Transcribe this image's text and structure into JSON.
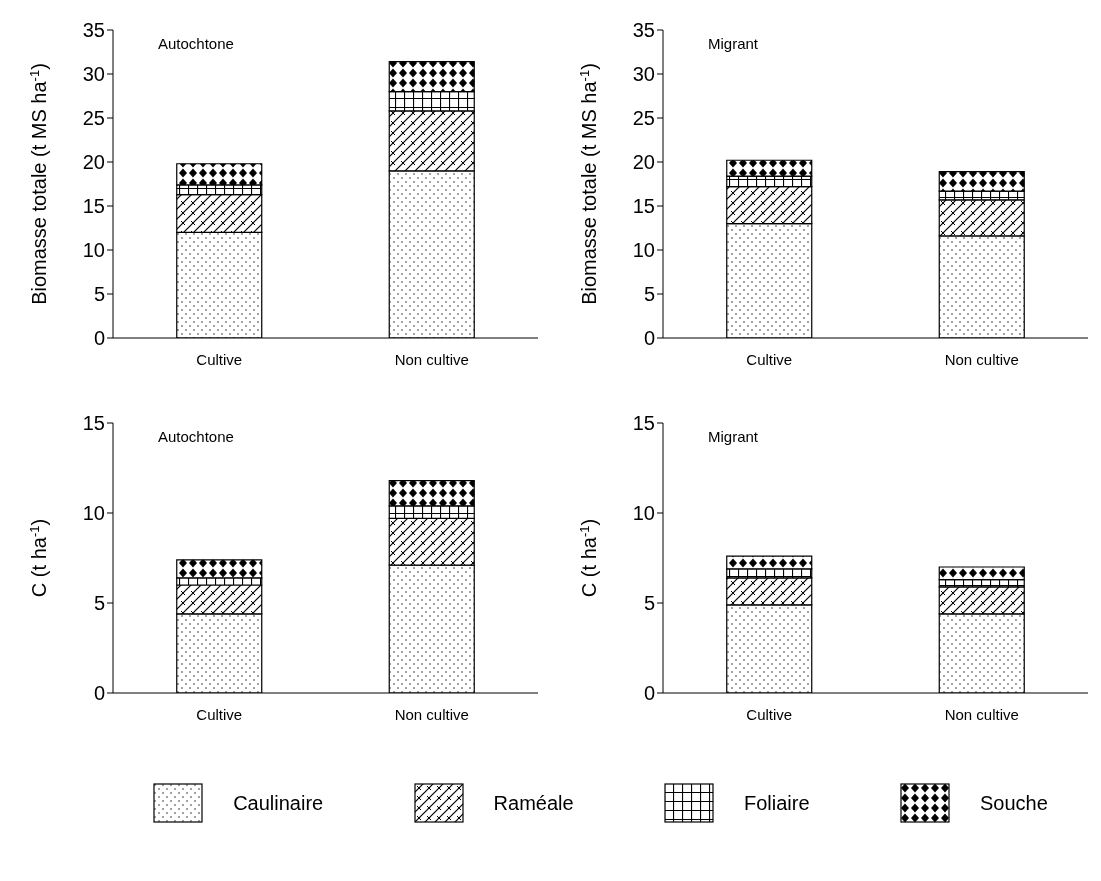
{
  "chart_data": [
    {
      "type": "bar",
      "stacked": true,
      "annotations": [
        "Autochtone"
      ],
      "ylabel": "Biomasse totale (t MS ha$^{-1}$)",
      "categories": [
        "Cultive",
        "Non cultive"
      ],
      "ylim": [
        0,
        35
      ],
      "yticks": [
        0,
        5,
        10,
        15,
        20,
        25,
        30,
        35
      ],
      "legend": "bottom",
      "series": [
        {
          "name": "Caulinaire",
          "color": "#000000",
          "values": [
            12,
            19
          ]
        },
        {
          "name": "Raméale",
          "color": "#000000",
          "values": [
            4.3,
            6.8
          ]
        },
        {
          "name": "Foliaire",
          "color": "#000000",
          "values": [
            1.1,
            2.2
          ]
        },
        {
          "name": "Souche",
          "color": "#000000",
          "values": [
            2.4,
            3.4
          ]
        }
      ]
    },
    {
      "type": "bar",
      "stacked": true,
      "annotations": [
        "Migrant"
      ],
      "ylabel": "Biomasse totale (t MS ha$^{-1}$)",
      "categories": [
        "Cultive",
        "Non cultive"
      ],
      "ylim": [
        0,
        35
      ],
      "yticks": [
        0,
        5,
        10,
        15,
        20,
        25,
        30,
        35
      ],
      "series": [
        {
          "color": "#000000",
          "values": [
            13,
            11.6
          ]
        },
        {
          "color": "#000000",
          "values": [
            4.2,
            4.1
          ]
        },
        {
          "color": "#000000",
          "values": [
            1.2,
            1.0
          ]
        },
        {
          "color": "#000000",
          "values": [
            1.8,
            2.2
          ]
        }
      ]
    },
    {
      "type": "bar",
      "stacked": true,
      "annotations": [
        "Autochtone"
      ],
      "ylabel": "C (t ha$^{-1}$)",
      "categories": [
        "Cultive",
        "Non cultive"
      ],
      "ylim": [
        0,
        15
      ],
      "yticks": [
        0,
        5,
        10,
        15
      ],
      "series": [
        {
          "color": "#000000",
          "values": [
            4.4,
            7.1
          ]
        },
        {
          "color": "#000000",
          "values": [
            1.6,
            2.6
          ]
        },
        {
          "color": "#000000",
          "values": [
            0.4,
            0.7
          ]
        },
        {
          "color": "#000000",
          "values": [
            1.0,
            1.4
          ]
        }
      ]
    },
    {
      "type": "bar",
      "stacked": true,
      "annotations": [
        "Migrant"
      ],
      "ylabel": "C (t ha$^{-1}$)",
      "categories": [
        "Cultive",
        "Non cultive"
      ],
      "ylim": [
        0,
        15
      ],
      "yticks": [
        0,
        5,
        10,
        15
      ],
      "series": [
        {
          "color": "#000000",
          "values": [
            4.9,
            4.4
          ]
        },
        {
          "color": "#000000",
          "values": [
            1.5,
            1.5
          ]
        },
        {
          "color": "#000000",
          "values": [
            0.5,
            0.4
          ]
        },
        {
          "color": "#000000",
          "values": [
            0.7,
            0.7
          ]
        }
      ]
    }
  ]
}
